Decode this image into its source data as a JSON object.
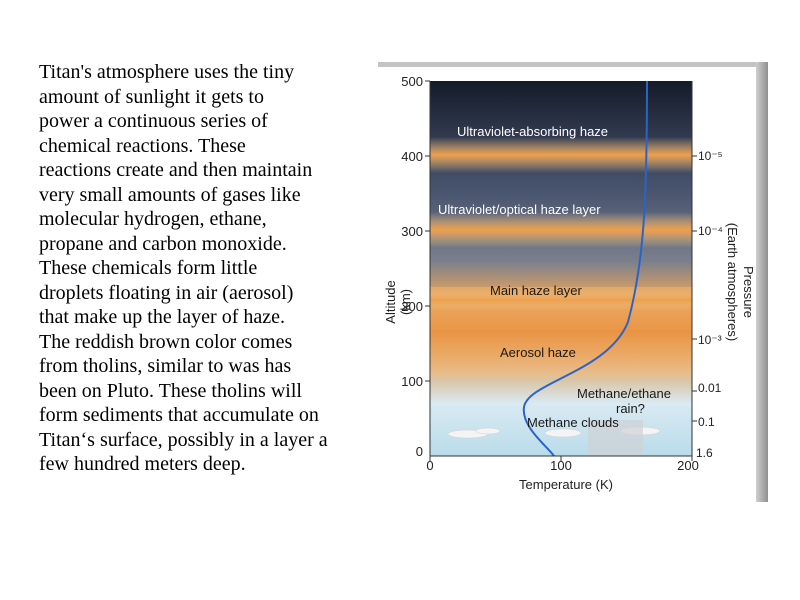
{
  "paragraph": "Titan's atmosphere uses the tiny\namount of sunlight it gets to\npower a continuous series of\nchemical reactions.  These\nreactions create and then maintain\nvery small amounts of gases like\nmolecular hydrogen, ethane,\npropane and carbon monoxide.\nThese chemicals form little\ndroplets floating in air (aerosol)\nthat make up the layer of haze.\nThe reddish brown color comes\nfrom tholins, similar to was has\nbeen on Pluto.  These tholins will\nform sediments that accumulate on\nTitan‘s surface, possibly in a layer a\nfew hundred meters deep.",
  "diagram": {
    "y_axis": {
      "label": "Altitude",
      "unit": "(km)",
      "ticks": [
        "500",
        "400",
        "300",
        "200",
        "100",
        "0"
      ]
    },
    "x_axis": {
      "label": "Temperature (K)",
      "ticks": [
        "0",
        "100",
        "200"
      ]
    },
    "pressure_axis": {
      "label": "Pressure",
      "unit": "(Earth atmospheres)",
      "ticks": [
        "10⁻⁵",
        "10⁻⁴",
        "10⁻³",
        "0.01",
        "0.1",
        "1.6"
      ]
    },
    "layers": {
      "uv_haze": "Ultraviolet-absorbing haze",
      "uv_optical": "Ultraviolet/optical haze layer",
      "main_haze": "Main haze layer",
      "aerosol": "Aerosol haze",
      "methane_rain_1": "Methane/ethane",
      "methane_rain_2": "rain?",
      "methane_clouds": "Methane clouds"
    },
    "colors": {
      "sky_top": "#1b2233",
      "haze": "#e8a25a",
      "curve": "#2a64c8",
      "frame": "#b0b0b0"
    }
  }
}
